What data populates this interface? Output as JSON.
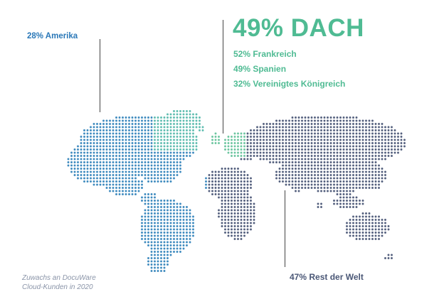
{
  "labels": {
    "americas": "28% Amerika",
    "dach": "49% DACH",
    "sub_markets": [
      "52% Frankreich",
      "49% Spanien",
      "32% Vereinigtes Königreich"
    ],
    "rest": "47% Rest der Welt"
  },
  "caption": {
    "line1": "Zuwachs an DocuWare",
    "line2": "Cloud-Kunden in 2020"
  },
  "colors": {
    "americas": "#2a78b8",
    "dach": "#4fbb93",
    "rest": "#4a5776",
    "caption": "#8a94a8"
  }
}
